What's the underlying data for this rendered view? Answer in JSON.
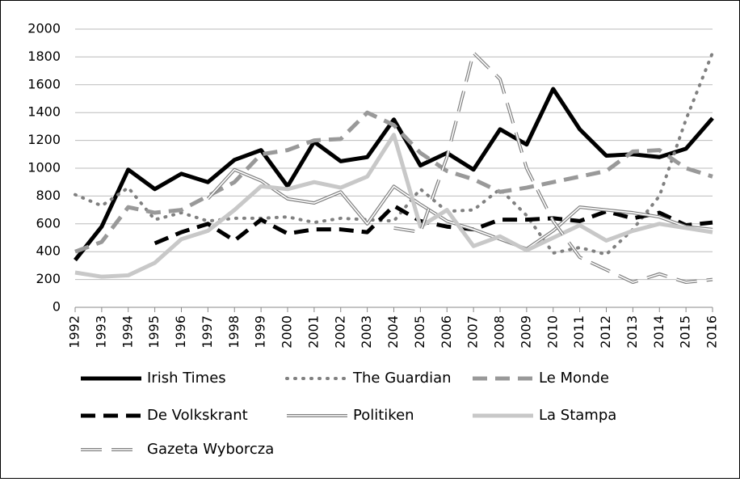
{
  "chart_data": {
    "type": "line",
    "categories": [
      "1992",
      "1993",
      "1994",
      "1995",
      "1996",
      "1997",
      "1998",
      "1999",
      "2000",
      "2001",
      "2002",
      "2003",
      "2004",
      "2005",
      "2006",
      "2007",
      "2008",
      "2009",
      "2010",
      "2011",
      "2012",
      "2013",
      "2014",
      "2015",
      "2016"
    ],
    "ylim": [
      0,
      2000
    ],
    "yticks": [
      0,
      200,
      400,
      600,
      800,
      1000,
      1200,
      1400,
      1600,
      1800,
      2000
    ],
    "grid": true,
    "legend": "bottom",
    "series": [
      {
        "name": "Irish Times",
        "color": "#000000",
        "style": "solid",
        "values": [
          340,
          580,
          990,
          850,
          960,
          900,
          1060,
          1130,
          870,
          1190,
          1050,
          1080,
          1350,
          1020,
          1110,
          990,
          1280,
          1170,
          1570,
          1280,
          1090,
          1100,
          1080,
          1140,
          1360
        ]
      },
      {
        "name": "The Guardian",
        "color": "#808080",
        "style": "dotted",
        "values": [
          810,
          730,
          860,
          630,
          680,
          620,
          640,
          640,
          650,
          610,
          640,
          630,
          620,
          850,
          690,
          700,
          850,
          660,
          390,
          430,
          380,
          560,
          800,
          1350,
          1830
        ]
      },
      {
        "name": "Le Monde",
        "color": "#999999",
        "style": "dashed",
        "values": [
          400,
          470,
          720,
          680,
          700,
          800,
          900,
          1100,
          1130,
          1200,
          1210,
          1400,
          1310,
          1110,
          980,
          920,
          830,
          860,
          900,
          940,
          980,
          1120,
          1130,
          1000,
          940
        ]
      },
      {
        "name": "De Volkskrant",
        "color": "#000000",
        "style": "dashed",
        "values": [
          null,
          null,
          null,
          460,
          540,
          600,
          480,
          630,
          530,
          560,
          560,
          540,
          730,
          620,
          580,
          560,
          630,
          630,
          640,
          620,
          690,
          640,
          680,
          590,
          610
        ]
      },
      {
        "name": "Politiken",
        "color": "#808080",
        "style": "double",
        "values": [
          null,
          null,
          null,
          null,
          null,
          780,
          990,
          910,
          780,
          750,
          830,
          600,
          870,
          740,
          620,
          560,
          490,
          420,
          550,
          720,
          700,
          680,
          650,
          580,
          560
        ]
      },
      {
        "name": "La Stampa",
        "color": "#c8c8c8",
        "style": "solid",
        "values": [
          250,
          220,
          230,
          320,
          490,
          550,
          700,
          870,
          850,
          900,
          860,
          940,
          1240,
          580,
          700,
          440,
          510,
          410,
          500,
          590,
          480,
          550,
          600,
          570,
          540
        ]
      },
      {
        "name": "Gazeta Wyborcza",
        "color": "#808080",
        "style": "double-dashed",
        "values": [
          null,
          null,
          null,
          null,
          null,
          null,
          null,
          null,
          null,
          null,
          null,
          null,
          570,
          540,
          1080,
          1830,
          1640,
          1000,
          620,
          360,
          270,
          180,
          240,
          180,
          200
        ]
      }
    ]
  }
}
